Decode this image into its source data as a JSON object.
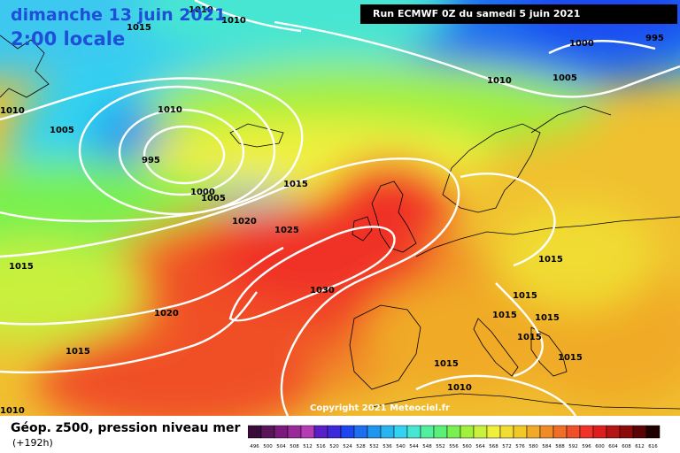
{
  "header": {
    "date": "dimanche 13 juin 2021",
    "time": "2:00 locale",
    "run": "Run ECMWF 0Z du samedi 5 juin 2021"
  },
  "copyright": "Copyright 2021 Meteociel.fr",
  "legend": {
    "title": "Géop. z500, pression niveau mer",
    "subtitle": "(+192h)",
    "scale_labels": [
      "496",
      "500",
      "504",
      "508",
      "512",
      "516",
      "520",
      "524",
      "528",
      "532",
      "536",
      "540",
      "544",
      "548",
      "552",
      "556",
      "560",
      "564",
      "568",
      "572",
      "576",
      "580",
      "584",
      "588",
      "592",
      "596",
      "600",
      "604",
      "608",
      "612",
      "616"
    ],
    "scale_colors": [
      "#3a0a3a",
      "#5a145a",
      "#7a1a7a",
      "#9a2a9a",
      "#b43cb4",
      "#5a1ec8",
      "#3c28dc",
      "#1e46f0",
      "#1e6ef0",
      "#1e96f0",
      "#28b4f0",
      "#32d2f0",
      "#46e6d2",
      "#50f0a0",
      "#5af078",
      "#78f050",
      "#a0f03c",
      "#c8f03c",
      "#f0f03c",
      "#f0dc32",
      "#f0c828",
      "#f0aa28",
      "#f08c28",
      "#f06e28",
      "#f05028",
      "#f03228",
      "#dc1e1e",
      "#b41414",
      "#8c0a0a",
      "#5a0505",
      "#1e0000"
    ]
  },
  "isobar_labels": [
    "1010",
    "1010",
    "1015",
    "1010",
    "1005",
    "1010",
    "995",
    "1000",
    "1005",
    "1015",
    "1020",
    "1025",
    "1030",
    "1020",
    "1015",
    "1015",
    "1015",
    "1015",
    "1015",
    "1015",
    "1015",
    "1015",
    "1010",
    "1010",
    "1000",
    "995",
    "1010",
    "1005",
    "1015"
  ],
  "lows": [
    "995"
  ],
  "highs": [
    "1030"
  ]
}
